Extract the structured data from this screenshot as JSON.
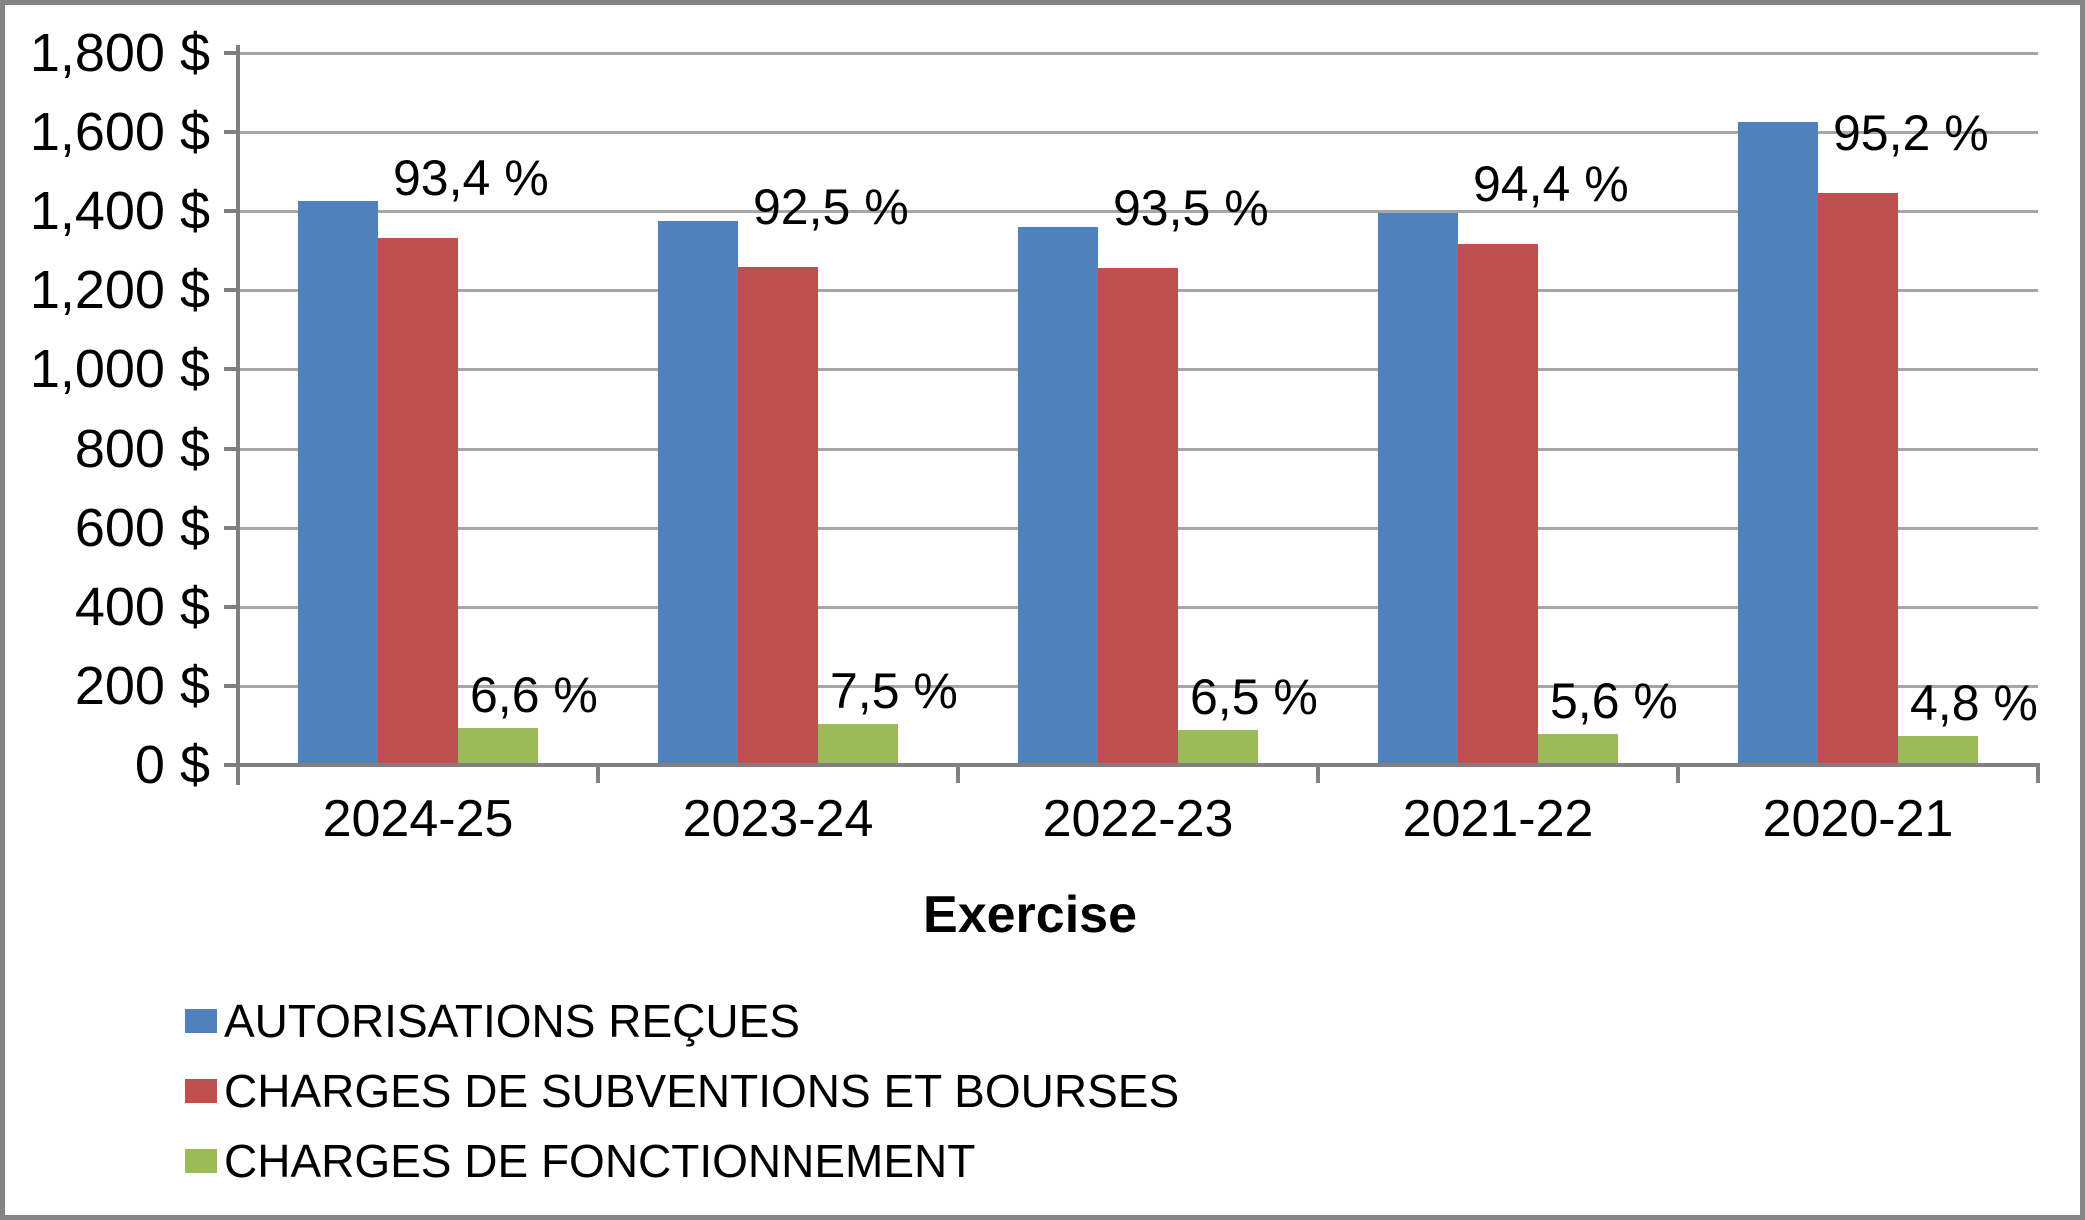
{
  "chart_data": {
    "type": "bar",
    "title": "",
    "xlabel": "Exercise",
    "ylabel": "",
    "categories": [
      "2024-25",
      "2023-24",
      "2022-23",
      "2021-22",
      "2020-21"
    ],
    "series": [
      {
        "name": "AUTORISATIONS REÇUES",
        "color": "#4F81BD",
        "values": [
          1425,
          1375,
          1360,
          1395,
          1625
        ],
        "data_labels": null
      },
      {
        "name": "CHARGES DE SUBVENTIONS ET BOURSES",
        "color": "#C0504D",
        "values": [
          1333,
          1260,
          1256,
          1318,
          1447
        ],
        "data_labels": [
          "93,4 %",
          "92,5 %",
          "93,5 %",
          "94,4 %",
          "95,2 %"
        ]
      },
      {
        "name": "CHARGES DE FONCTIONNEMENT",
        "color": "#9BBB59",
        "values": [
          94,
          103,
          88,
          78,
          73
        ],
        "data_labels": [
          "6,6 %",
          "7,5 %",
          "6,5 %",
          "5,6 %",
          "4,8 %"
        ]
      }
    ],
    "ylim": [
      0,
      1800
    ],
    "ytick_step": 200,
    "y_tick_labels": [
      "1,800 $",
      "1,600 $",
      "1,400 $",
      "1,200 $",
      "1,000 $",
      "800 $",
      "600 $",
      "400 $",
      "200 $",
      "0 $"
    ],
    "grid": true,
    "legend_position": "bottom-left",
    "colors": {
      "gridline": "#A6A6A6",
      "axis": "#808080",
      "frame_border": "#848484",
      "text": "#000000",
      "background": "#FFFFFF"
    }
  }
}
